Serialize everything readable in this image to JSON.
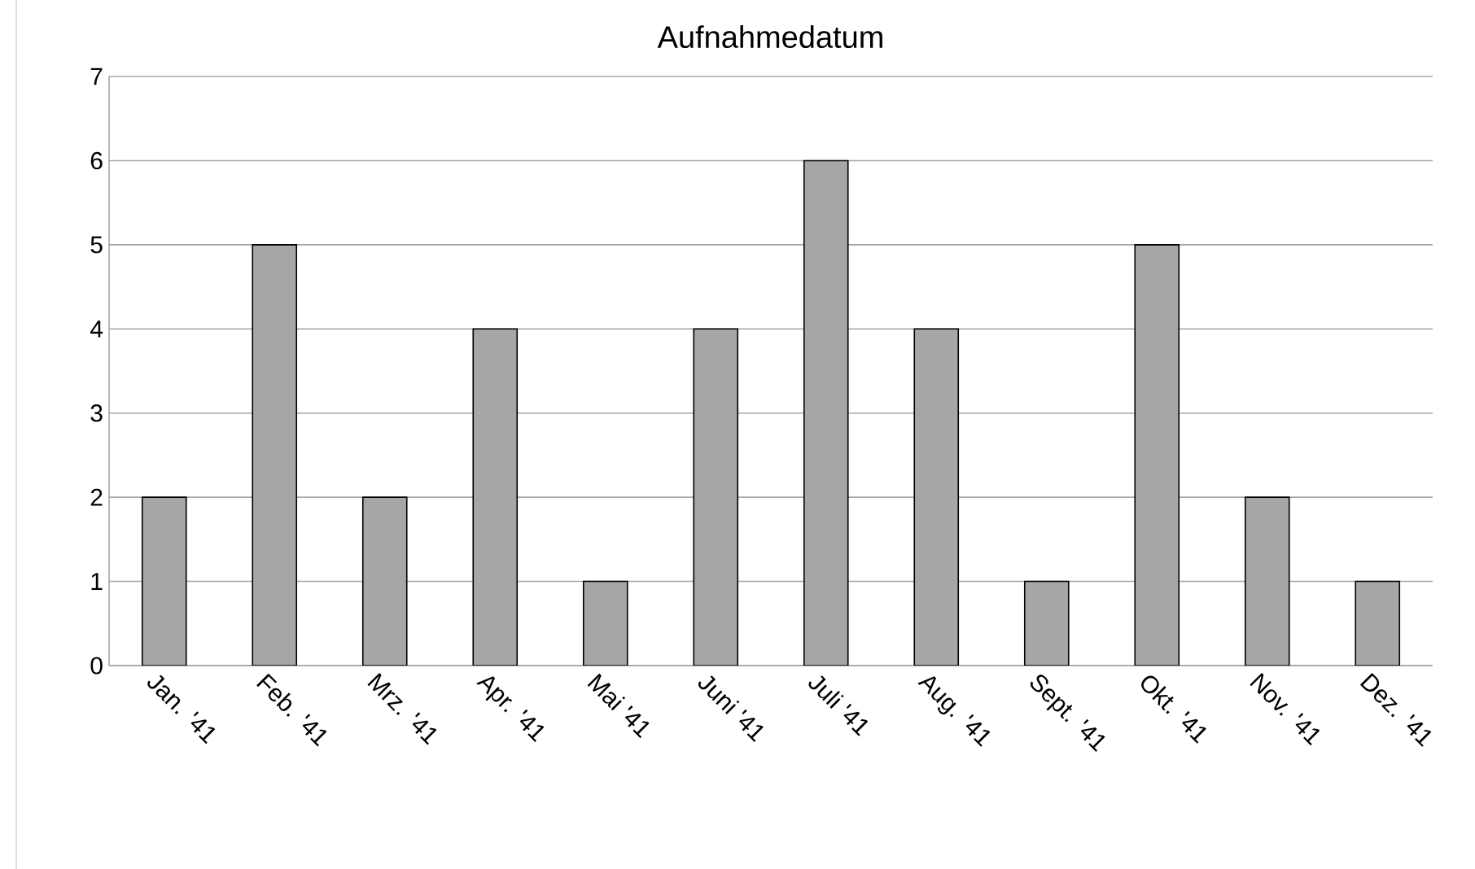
{
  "chart_data": {
    "type": "bar",
    "title": "Aufnahmedatum",
    "categories": [
      "Jan. '41",
      "Feb. '41",
      "Mrz. '41",
      "Apr. '41",
      "Mai '41",
      "Juni '41",
      "Juli '41",
      "Aug. '41",
      "Sept. '41",
      "Okt. '41",
      "Nov. '41",
      "Dez. '41"
    ],
    "values": [
      2,
      5,
      2,
      4,
      1,
      4,
      6,
      4,
      1,
      5,
      2,
      1
    ],
    "color": "#a6a6a6",
    "ylim": [
      0,
      7
    ],
    "yticks": [
      0,
      1,
      2,
      3,
      4,
      5,
      6,
      7
    ],
    "grid": "y"
  }
}
